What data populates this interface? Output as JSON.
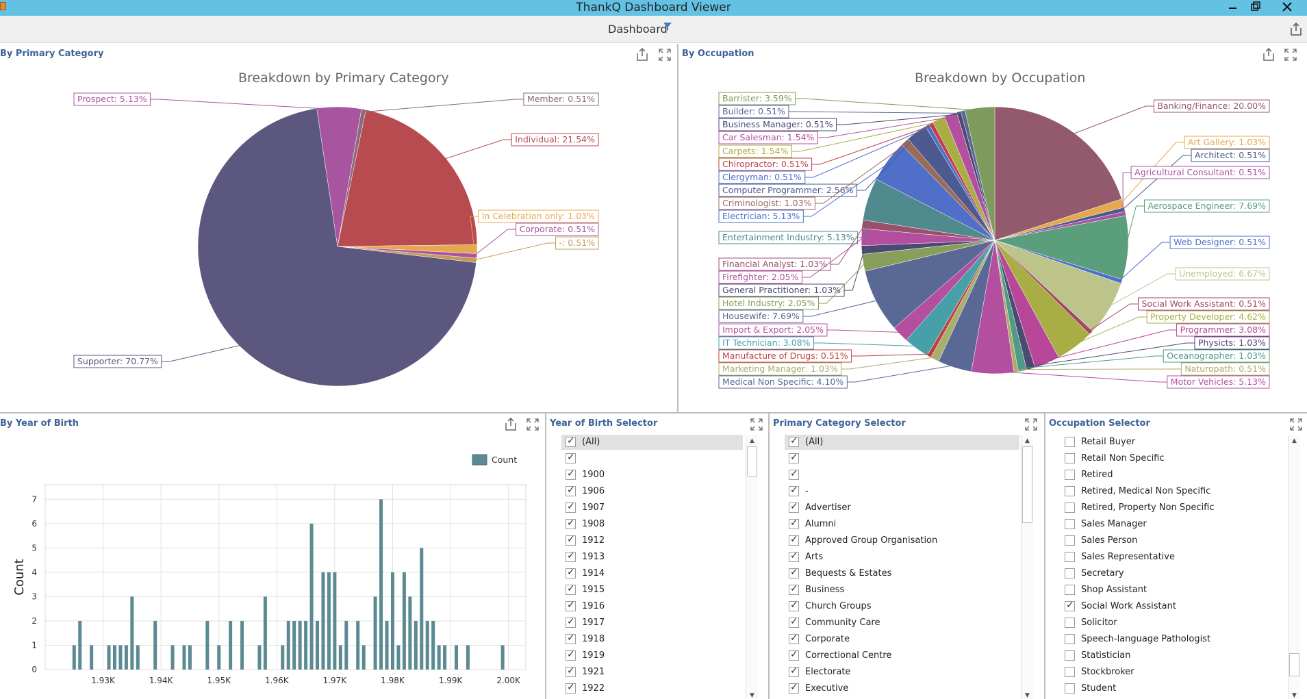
{
  "window": {
    "title": "ThankQ Dashboard Viewer"
  },
  "toolbar": {
    "title": "Dashboard",
    "filter_icon": "funnel-icon",
    "export_icon": "export-icon"
  },
  "icons": {
    "export": "export-icon",
    "maximize": "maximize-icon"
  },
  "colors": {
    "titlebar": "#63c1e3",
    "panel_title": "#3d6398",
    "bar": "#5b8a93"
  },
  "panels": {
    "primary_category": {
      "caption": "By Primary Category",
      "chart_title": "Breakdown by Primary Category"
    },
    "occupation": {
      "caption": "By Occupation",
      "chart_title": "Breakdown by Occupation"
    },
    "year_of_birth": {
      "caption": "By Year of Birth",
      "legend": "Count",
      "ylabel": "Count"
    },
    "yob_selector": {
      "caption": "Year of Birth Selector"
    },
    "pc_selector": {
      "caption": "Primary Category Selector"
    },
    "occ_selector": {
      "caption": "Occupation Selector"
    }
  },
  "chart_data": [
    {
      "type": "pie",
      "title": "Breakdown by Primary Category",
      "slices": [
        {
          "label": "Member: 0.51%",
          "value": 0.51,
          "color": "#8b6a7a"
        },
        {
          "label": "Individual: 21.54%",
          "value": 21.54,
          "color": "#b84b4f"
        },
        {
          "label": "In Celebration only: 1.03%",
          "value": 1.03,
          "color": "#e6a84e"
        },
        {
          "label": "Corporate: 0.51%",
          "value": 0.51,
          "color": "#a855a0"
        },
        {
          "label": "-: 0.51%",
          "value": 0.51,
          "color": "#c49a5a"
        },
        {
          "label": "Supporter: 70.77%",
          "value": 70.77,
          "color": "#5b577e"
        },
        {
          "label": "Prospect: 5.13%",
          "value": 5.13,
          "color": "#a855a0"
        }
      ]
    },
    {
      "type": "pie",
      "title": "Breakdown by Occupation",
      "slices": [
        {
          "label": "Banking/Finance: 20.00%",
          "value": 20.0,
          "color": "#93596c"
        },
        {
          "label": "Art Gallery: 1.03%",
          "value": 1.03,
          "color": "#e6a84e"
        },
        {
          "label": "Architect: 0.51%",
          "value": 0.51,
          "color": "#4c5a8f"
        },
        {
          "label": "Agricultural Consultant: 0.51%",
          "value": 0.51,
          "color": "#a855a0"
        },
        {
          "label": "Aerospace Engineer: 7.69%",
          "value": 7.69,
          "color": "#5a9e7c"
        },
        {
          "label": "Web Designer: 0.51%",
          "value": 0.51,
          "color": "#4f6fc8"
        },
        {
          "label": "Unemployed: 6.67%",
          "value": 6.67,
          "color": "#bcc48a"
        },
        {
          "label": "Social Work Assistant: 0.51%",
          "value": 0.51,
          "color": "#a04868"
        },
        {
          "label": "Property Developer: 4.62%",
          "value": 4.62,
          "color": "#a8ae44"
        },
        {
          "label": "Programmer: 3.08%",
          "value": 3.08,
          "color": "#b8479a"
        },
        {
          "label": "Physicts: 1.03%",
          "value": 1.03,
          "color": "#4a4a72"
        },
        {
          "label": "Oceanographer: 1.03%",
          "value": 1.03,
          "color": "#4f9b86"
        },
        {
          "label": "Naturopath: 0.51%",
          "value": 0.51,
          "color": "#b0a868"
        },
        {
          "label": "Motor Vehicles: 5.13%",
          "value": 5.13,
          "color": "#b44fa0"
        },
        {
          "label": "Medical Non Specific: 4.10%",
          "value": 4.1,
          "color": "#5a6896"
        },
        {
          "label": "Marketing Manager: 1.03%",
          "value": 1.03,
          "color": "#a8ae6e"
        },
        {
          "label": "Manufacture of Drugs: 0.51%",
          "value": 0.51,
          "color": "#c04040"
        },
        {
          "label": "IT Technician: 3.08%",
          "value": 3.08,
          "color": "#47a0a8"
        },
        {
          "label": "Import & Export: 2.05%",
          "value": 2.05,
          "color": "#b44fa0"
        },
        {
          "label": "Housewife: 7.69%",
          "value": 7.69,
          "color": "#5a6896"
        },
        {
          "label": "Hotel Industry: 2.05%",
          "value": 2.05,
          "color": "#8a9e5c"
        },
        {
          "label": "General Practitioner: 1.03%",
          "value": 1.03,
          "color": "#4a4a72"
        },
        {
          "label": "Firefighter: 2.05%",
          "value": 2.05,
          "color": "#b44fa0"
        },
        {
          "label": "Financial Analyst: 1.03%",
          "value": 1.03,
          "color": "#9a5068"
        },
        {
          "label": "Entertainment Industry: 5.13%",
          "value": 5.13,
          "color": "#4f8b8e"
        },
        {
          "label": "Electrician: 5.13%",
          "value": 5.13,
          "color": "#4f6fc8"
        },
        {
          "label": "Criminologist: 1.03%",
          "value": 1.03,
          "color": "#9a6a5a"
        },
        {
          "label": "Computer Programmer: 2.56%",
          "value": 2.56,
          "color": "#4c5a8f"
        },
        {
          "label": "Clergyman: 0.51%",
          "value": 0.51,
          "color": "#4f6fc8"
        },
        {
          "label": "Chiropractor: 0.51%",
          "value": 0.51,
          "color": "#c04048"
        },
        {
          "label": "Carpets: 1.54%",
          "value": 1.54,
          "color": "#a8ae44"
        },
        {
          "label": "Car Salesman: 1.54%",
          "value": 1.54,
          "color": "#b44fa0"
        },
        {
          "label": "Business Manager: 0.51%",
          "value": 0.51,
          "color": "#4a4a72"
        },
        {
          "label": "Builder: 0.51%",
          "value": 0.51,
          "color": "#5a6896"
        },
        {
          "label": "Barrister: 3.59%",
          "value": 3.59,
          "color": "#7e9a5c"
        }
      ]
    },
    {
      "type": "bar",
      "title": "",
      "xlabel": "",
      "ylabel": "Count",
      "legend": [
        "Count"
      ],
      "legend_position": "top-right",
      "grid": true,
      "xlim": [
        1920,
        2003
      ],
      "ylim": [
        0,
        7.6
      ],
      "xticks": [
        1930,
        1940,
        1950,
        1960,
        1970,
        1980,
        1990,
        2000
      ],
      "xtick_labels": [
        "1.93K",
        "1.94K",
        "1.95K",
        "1.96K",
        "1.97K",
        "1.98K",
        "1.99K",
        "2.00K"
      ],
      "yticks": [
        0,
        1,
        2,
        3,
        4,
        5,
        6,
        7
      ],
      "x": [
        1925,
        1926,
        1928,
        1931,
        1932,
        1933,
        1934,
        1935,
        1936,
        1939,
        1942,
        1944,
        1945,
        1948,
        1950,
        1952,
        1954,
        1957,
        1958,
        1961,
        1962,
        1963,
        1964,
        1965,
        1966,
        1967,
        1968,
        1969,
        1970,
        1971,
        1972,
        1974,
        1975,
        1977,
        1978,
        1979,
        1980,
        1981,
        1982,
        1983,
        1984,
        1985,
        1986,
        1987,
        1988,
        1989,
        1991,
        1993,
        1999
      ],
      "values": [
        1,
        2,
        1,
        1,
        1,
        1,
        1,
        3,
        1,
        2,
        1,
        1,
        1,
        2,
        1,
        2,
        2,
        1,
        3,
        1,
        2,
        2,
        2,
        2,
        6,
        2,
        4,
        4,
        4,
        1,
        2,
        2,
        1,
        3,
        7,
        2,
        4,
        1,
        4,
        3,
        2,
        5,
        2,
        2,
        1,
        1,
        1,
        1,
        1
      ]
    }
  ],
  "yob_selector": {
    "items": [
      {
        "label": "(All)",
        "checked": true,
        "highlight": true
      },
      {
        "label": "",
        "checked": true
      },
      {
        "label": "1900",
        "checked": true
      },
      {
        "label": "1906",
        "checked": true
      },
      {
        "label": "1907",
        "checked": true
      },
      {
        "label": "1908",
        "checked": true
      },
      {
        "label": "1912",
        "checked": true
      },
      {
        "label": "1913",
        "checked": true
      },
      {
        "label": "1914",
        "checked": true
      },
      {
        "label": "1915",
        "checked": true
      },
      {
        "label": "1916",
        "checked": true
      },
      {
        "label": "1917",
        "checked": true
      },
      {
        "label": "1918",
        "checked": true
      },
      {
        "label": "1919",
        "checked": true
      },
      {
        "label": "1921",
        "checked": true
      },
      {
        "label": "1922",
        "checked": true
      }
    ]
  },
  "pc_selector": {
    "items": [
      {
        "label": "(All)",
        "checked": true,
        "highlight": true
      },
      {
        "label": "",
        "checked": true
      },
      {
        "label": "",
        "checked": true
      },
      {
        "label": "-",
        "checked": true
      },
      {
        "label": "Advertiser",
        "checked": true
      },
      {
        "label": "Alumni",
        "checked": true
      },
      {
        "label": "Approved Group Organisation",
        "checked": true
      },
      {
        "label": "Arts",
        "checked": true
      },
      {
        "label": "Bequests & Estates",
        "checked": true
      },
      {
        "label": "Business",
        "checked": true
      },
      {
        "label": "Church Groups",
        "checked": true
      },
      {
        "label": "Community Care",
        "checked": true
      },
      {
        "label": "Corporate",
        "checked": true
      },
      {
        "label": "Correctional Centre",
        "checked": true
      },
      {
        "label": "Electorate",
        "checked": true
      },
      {
        "label": "Executive",
        "checked": true
      }
    ]
  },
  "occ_selector": {
    "items": [
      {
        "label": "Retail Buyer",
        "checked": false
      },
      {
        "label": "Retail Non Specific",
        "checked": false
      },
      {
        "label": "Retired",
        "checked": false
      },
      {
        "label": "Retired, Medical Non Specific",
        "checked": false
      },
      {
        "label": "Retired, Property Non Specific",
        "checked": false
      },
      {
        "label": "Sales Manager",
        "checked": false
      },
      {
        "label": "Sales Person",
        "checked": false
      },
      {
        "label": "Sales Representative",
        "checked": false
      },
      {
        "label": "Secretary",
        "checked": false
      },
      {
        "label": "Shop Assistant",
        "checked": false
      },
      {
        "label": "Social Work Assistant",
        "checked": true
      },
      {
        "label": "Solicitor",
        "checked": false
      },
      {
        "label": "Speech-language Pathologist",
        "checked": false
      },
      {
        "label": "Statistician",
        "checked": false
      },
      {
        "label": "Stockbroker",
        "checked": false
      },
      {
        "label": "Student",
        "checked": false
      }
    ]
  }
}
